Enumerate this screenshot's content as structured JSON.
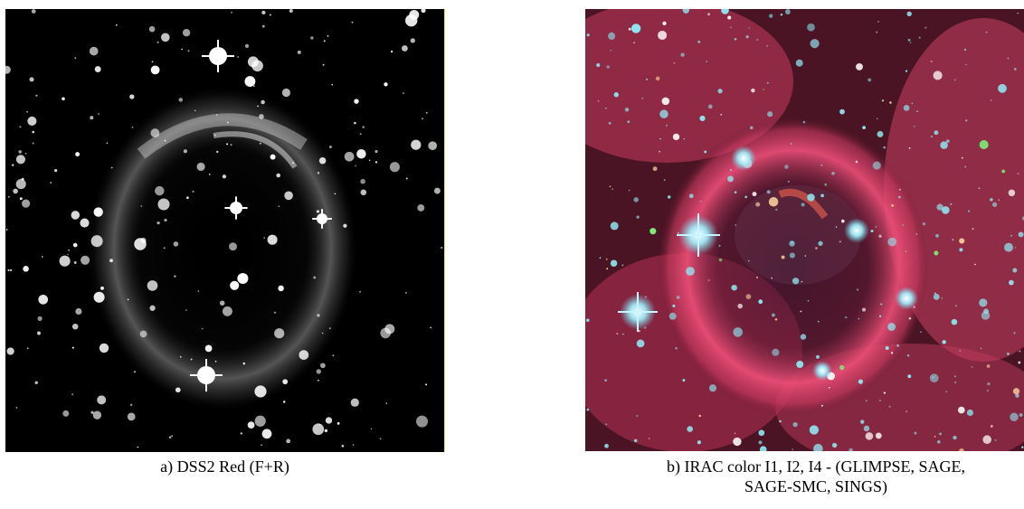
{
  "panels": [
    {
      "caption": "a) DSS2 Red (F+R)",
      "image": "grayscale star field with ring nebula",
      "colors": {
        "background": "#000000",
        "stars": "#ffffff",
        "nebula": "#bbbbbb"
      }
    },
    {
      "caption_line1": "b) IRAC color I1, I2, I4 - (GLIMPSE, SAGE,",
      "caption_line2": "SAGE-SMC, SINGS)",
      "image": "false color infrared star field with pink nebula ring",
      "colors": {
        "background": "#3a0f1c",
        "nebula": "#e8476e",
        "stars": "#8fe6f0"
      }
    }
  ]
}
